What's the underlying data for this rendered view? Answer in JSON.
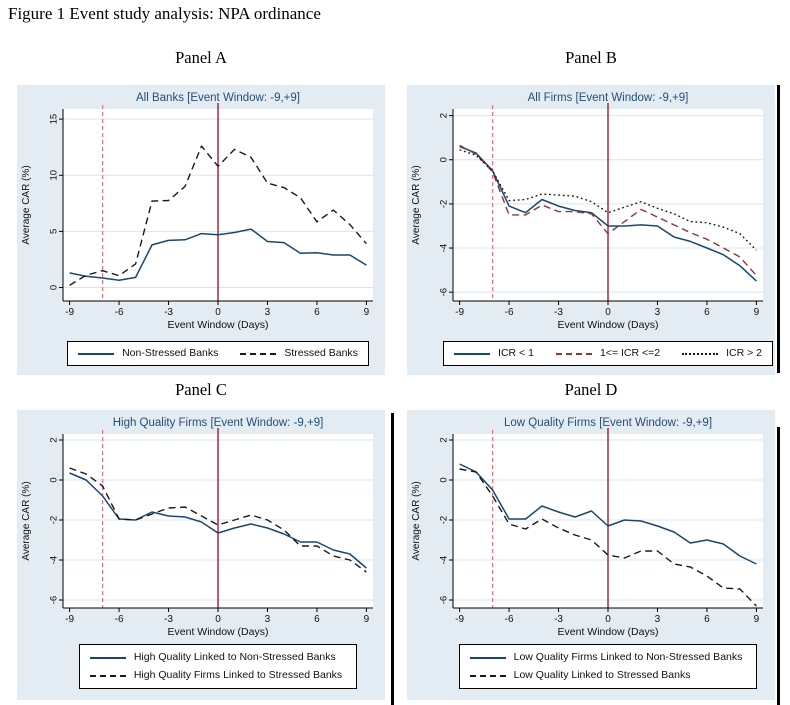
{
  "figure_title": "Figure 1 Event study analysis: NPA ordinance",
  "colors": {
    "canvas_bg": "#e4ecf3",
    "plot_bg": "#ffffff",
    "grid": "#d8e4f0",
    "navy": "#1a476f",
    "black": "#1a1a1a",
    "maroon": "#90353b",
    "title": "#254e77",
    "axis": "#000000",
    "tick_text": "#111111",
    "event_line_solid": "#a01b33",
    "event_line_dashed": "#e8737f"
  },
  "x_axis_label": "Event Window (Days)",
  "y_axis_label": "Average CAR (%)",
  "x_ticks": [
    -9,
    -6,
    -3,
    0,
    3,
    6,
    9
  ],
  "x": [
    -9,
    -8,
    -7,
    -6,
    -5,
    -4,
    -3,
    -2,
    -1,
    0,
    1,
    2,
    3,
    4,
    5,
    6,
    7,
    8,
    9
  ],
  "event_lines": {
    "dashed_x": -7,
    "solid_x": 0
  },
  "chart_data": [
    {
      "type": "line",
      "panel_label": "Panel A",
      "title": "All Banks [Event Window: -9,+9]",
      "xlabel": "Event Window (Days)",
      "ylabel": "Average CAR (%)",
      "y_ticks": [
        0,
        5,
        10,
        15
      ],
      "ylim": [
        -1.2,
        15.9
      ],
      "legend_rows": 1,
      "series": [
        {
          "name": "Non-Stressed Banks",
          "style": "solid",
          "color": "navy",
          "values": [
            1.3,
            1.0,
            0.85,
            0.65,
            0.9,
            3.8,
            4.2,
            4.25,
            4.8,
            4.7,
            4.9,
            5.2,
            4.1,
            4.0,
            3.05,
            3.1,
            2.9,
            2.9,
            2.0
          ]
        },
        {
          "name": "Stressed Banks",
          "style": "dashed",
          "color": "black",
          "values": [
            0.2,
            1.1,
            1.5,
            1.05,
            2.1,
            7.7,
            7.75,
            9.0,
            12.6,
            10.8,
            12.3,
            11.6,
            9.3,
            8.9,
            8.0,
            5.85,
            6.9,
            5.6,
            3.9
          ]
        }
      ]
    },
    {
      "type": "line",
      "panel_label": "Panel B",
      "title": "All Firms [Event Window: -9,+9]",
      "xlabel": "Event Window (Days)",
      "ylabel": "Average CAR (%)",
      "y_ticks": [
        2,
        0,
        -2,
        -4,
        -6
      ],
      "ylim": [
        -6.4,
        2.3
      ],
      "legend_rows": 1,
      "series": [
        {
          "name": "ICR < 1",
          "style": "solid",
          "color": "navy",
          "values": [
            0.6,
            0.3,
            -0.5,
            -2.1,
            -2.4,
            -1.8,
            -2.1,
            -2.3,
            -2.4,
            -3.0,
            -3.0,
            -2.95,
            -3.0,
            -3.5,
            -3.7,
            -4.0,
            -4.3,
            -4.8,
            -5.5
          ]
        },
        {
          "name": "1<= ICR <=2",
          "style": "dashed",
          "color": "maroon",
          "values": [
            0.65,
            0.25,
            -0.55,
            -2.5,
            -2.5,
            -2.05,
            -2.35,
            -2.35,
            -2.45,
            -3.35,
            -2.8,
            -2.25,
            -2.6,
            -2.95,
            -3.3,
            -3.6,
            -4.0,
            -4.4,
            -5.25
          ]
        },
        {
          "name": "ICR > 2",
          "style": "dotted",
          "color": "black",
          "values": [
            0.45,
            0.2,
            -0.5,
            -1.85,
            -1.8,
            -1.55,
            -1.6,
            -1.65,
            -1.9,
            -2.4,
            -2.15,
            -1.9,
            -2.2,
            -2.45,
            -2.8,
            -2.85,
            -3.05,
            -3.35,
            -4.1
          ]
        }
      ]
    },
    {
      "type": "line",
      "panel_label": "Panel C",
      "title": "High Quality Firms [Event Window: -9,+9]",
      "xlabel": "Event Window (Days)",
      "ylabel": "Average CAR (%)",
      "y_ticks": [
        2,
        0,
        -2,
        -4,
        -6
      ],
      "ylim": [
        -6.4,
        2.3
      ],
      "legend_rows": 2,
      "series": [
        {
          "name": "High Quality Linked to Non-Stressed Banks",
          "style": "solid",
          "color": "navy",
          "values": [
            0.35,
            0.0,
            -0.8,
            -1.95,
            -2.0,
            -1.6,
            -1.8,
            -1.85,
            -2.1,
            -2.65,
            -2.4,
            -2.2,
            -2.4,
            -2.7,
            -3.1,
            -3.1,
            -3.5,
            -3.7,
            -4.4
          ]
        },
        {
          "name": "High Quality Firms Linked to Stressed Banks",
          "style": "dashed",
          "color": "black",
          "values": [
            0.6,
            0.3,
            -0.3,
            -1.95,
            -2.0,
            -1.7,
            -1.4,
            -1.35,
            -1.8,
            -2.25,
            -2.0,
            -1.75,
            -2.0,
            -2.5,
            -3.3,
            -3.3,
            -3.8,
            -4.0,
            -4.6
          ]
        }
      ]
    },
    {
      "type": "line",
      "panel_label": "Panel D",
      "title": "Low Quality Firms [Event Window: -9,+9]",
      "xlabel": "Event Window (Days)",
      "ylabel": "Average CAR (%)",
      "y_ticks": [
        2,
        0,
        -2,
        -4,
        -6
      ],
      "ylim": [
        -6.4,
        2.3
      ],
      "legend_rows": 2,
      "series": [
        {
          "name": "Low Quality Firms Linked to Non-Stressed Banks",
          "style": "solid",
          "color": "navy",
          "values": [
            0.8,
            0.4,
            -0.5,
            -1.95,
            -1.95,
            -1.3,
            -1.6,
            -1.85,
            -1.55,
            -2.3,
            -2.0,
            -2.05,
            -2.3,
            -2.6,
            -3.15,
            -3.0,
            -3.2,
            -3.8,
            -4.2
          ]
        },
        {
          "name": "Low Quality Linked to Stressed Banks",
          "style": "dashed",
          "color": "black",
          "values": [
            0.55,
            0.4,
            -0.8,
            -2.2,
            -2.45,
            -1.95,
            -2.4,
            -2.75,
            -3.0,
            -3.75,
            -3.9,
            -3.55,
            -3.55,
            -4.2,
            -4.35,
            -4.8,
            -5.4,
            -5.45,
            -6.3
          ]
        }
      ]
    }
  ]
}
